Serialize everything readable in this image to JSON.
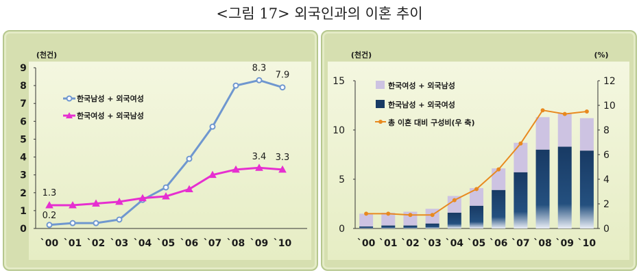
{
  "figure": {
    "title": "<그림 17> 외국인과의 이혼 추이"
  },
  "chart_data": [
    {
      "type": "line",
      "unit_label": "(천건)",
      "categories": [
        "`00",
        "`01",
        "`02",
        "`03",
        "`04",
        "`05",
        "`06",
        "`07",
        "`08",
        "`09",
        "`10"
      ],
      "ylim": [
        0,
        9
      ],
      "yticks": [
        "0",
        "1",
        "2",
        "3",
        "4",
        "5",
        "6",
        "7",
        "8",
        "9"
      ],
      "grid": false,
      "legend_position": "top-left",
      "series": [
        {
          "name": "한국남성 + 외국여성",
          "color": "#6f97cf",
          "marker": "circle",
          "values": [
            0.2,
            0.3,
            0.3,
            0.5,
            1.6,
            2.3,
            3.9,
            5.7,
            8.0,
            8.3,
            7.9
          ]
        },
        {
          "name": "한국여성 + 외국남성",
          "color": "#e62fd0",
          "marker": "triangle",
          "values": [
            1.3,
            1.3,
            1.4,
            1.5,
            1.7,
            1.8,
            2.2,
            3.0,
            3.3,
            3.4,
            3.3
          ]
        }
      ],
      "data_labels": [
        {
          "series": 0,
          "index": 0,
          "text": "0.2"
        },
        {
          "series": 1,
          "index": 0,
          "text": "1.3"
        },
        {
          "series": 0,
          "index": 9,
          "text": "8.3"
        },
        {
          "series": 0,
          "index": 10,
          "text": "7.9"
        },
        {
          "series": 1,
          "index": 9,
          "text": "3.4"
        },
        {
          "series": 1,
          "index": 10,
          "text": "3.3"
        }
      ]
    },
    {
      "type": "bar",
      "stacked": true,
      "unit_label_left": "(천건)",
      "unit_label_right": "(%)",
      "categories": [
        "`00",
        "`01",
        "`02",
        "`03",
        "`04",
        "`05",
        "`06",
        "`07",
        "`08",
        "`09",
        "`10"
      ],
      "ylim": [
        0,
        15
      ],
      "yticks": [
        "0",
        "5",
        "10",
        "15"
      ],
      "y2lim": [
        0,
        12
      ],
      "y2ticks": [
        "0",
        "2",
        "4",
        "6",
        "8",
        "10",
        "12"
      ],
      "grid": false,
      "legend_position": "top-left",
      "series": [
        {
          "name": "한국남성 + 외국여성",
          "color": "#183a64",
          "axis": "left",
          "values": [
            0.2,
            0.3,
            0.3,
            0.5,
            1.6,
            2.3,
            3.9,
            5.7,
            8.0,
            8.3,
            7.9
          ]
        },
        {
          "name": "한국여성 + 외국남성",
          "color": "#cdc3e2",
          "axis": "left",
          "values": [
            1.3,
            1.3,
            1.4,
            1.5,
            1.7,
            1.8,
            2.2,
            3.0,
            3.3,
            3.4,
            3.3
          ]
        },
        {
          "name": "총 이혼 대비 구성비(우 축)",
          "color": "#e8891f",
          "type": "line",
          "axis": "right",
          "values": [
            1.2,
            1.2,
            1.1,
            1.1,
            2.3,
            3.2,
            4.8,
            6.9,
            9.6,
            9.3,
            9.5
          ]
        }
      ]
    }
  ]
}
